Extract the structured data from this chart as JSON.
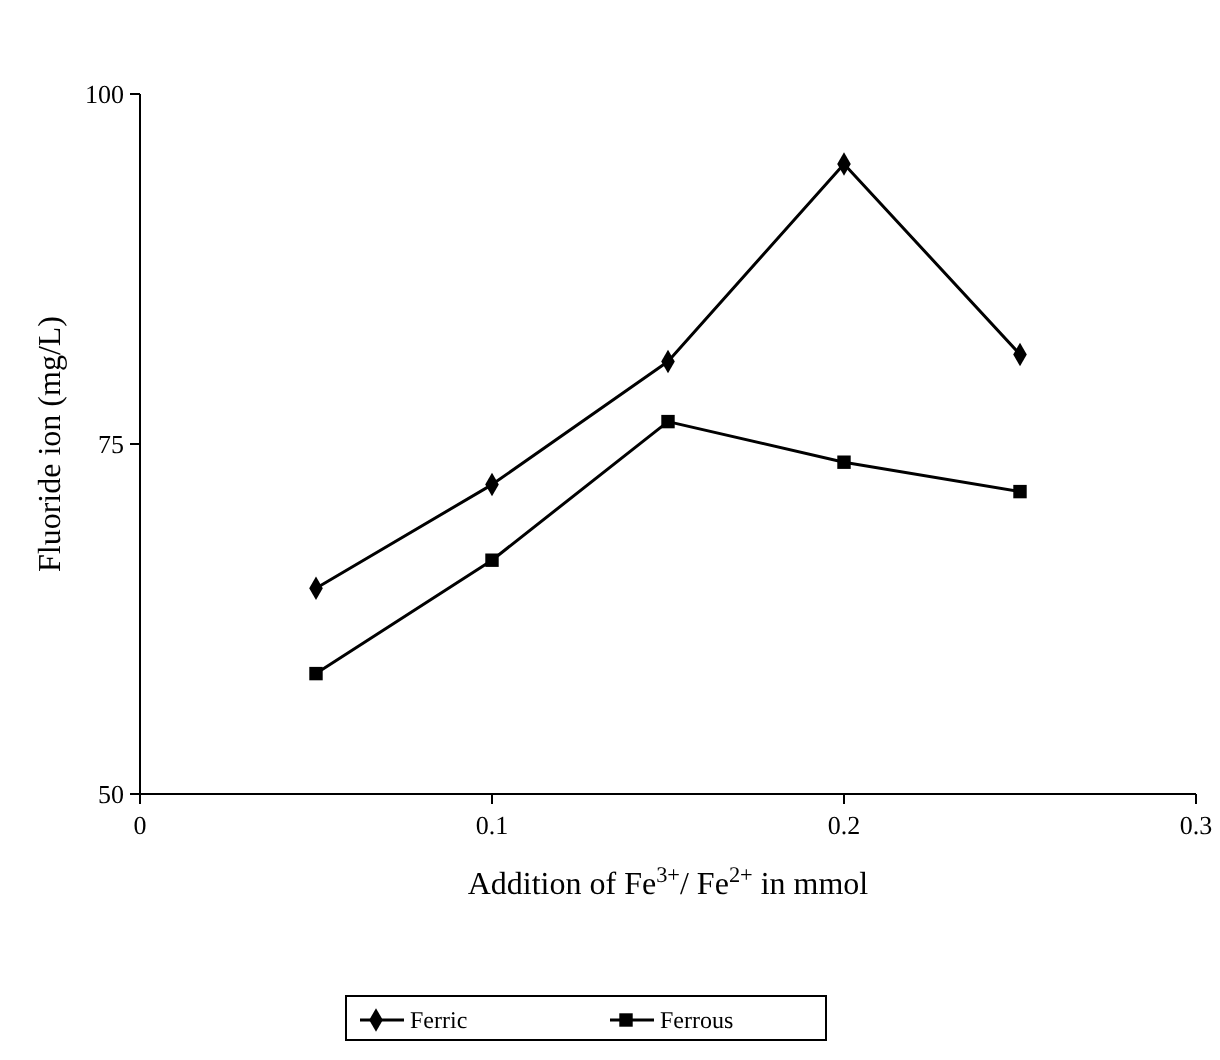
{
  "chart_data": {
    "type": "line",
    "xlabel": "Addition of Fe$^{3+}$/ Fe$^{2+}$ in mmol",
    "ylabel": "Fluoride ion (mg/L)",
    "x": [
      0.05,
      0.1,
      0.15,
      0.2,
      0.25
    ],
    "xlim": [
      0,
      0.3
    ],
    "xticks": [
      0,
      0.1,
      0.2,
      0.3
    ],
    "ylim": [
      50,
      100
    ],
    "yticks": [
      50,
      75,
      100
    ],
    "series": [
      {
        "name": "Ferric",
        "color": "#000000",
        "marker": "diamond",
        "values": [
          64.7,
          72.1,
          80.9,
          95,
          81.4
        ]
      },
      {
        "name": "Ferrous",
        "color": "#000000",
        "marker": "square",
        "values": [
          58.6,
          66.7,
          76.6,
          73.7,
          71.6
        ]
      }
    ],
    "legend": "bottom",
    "grid": false,
    "line_style": "solid"
  }
}
